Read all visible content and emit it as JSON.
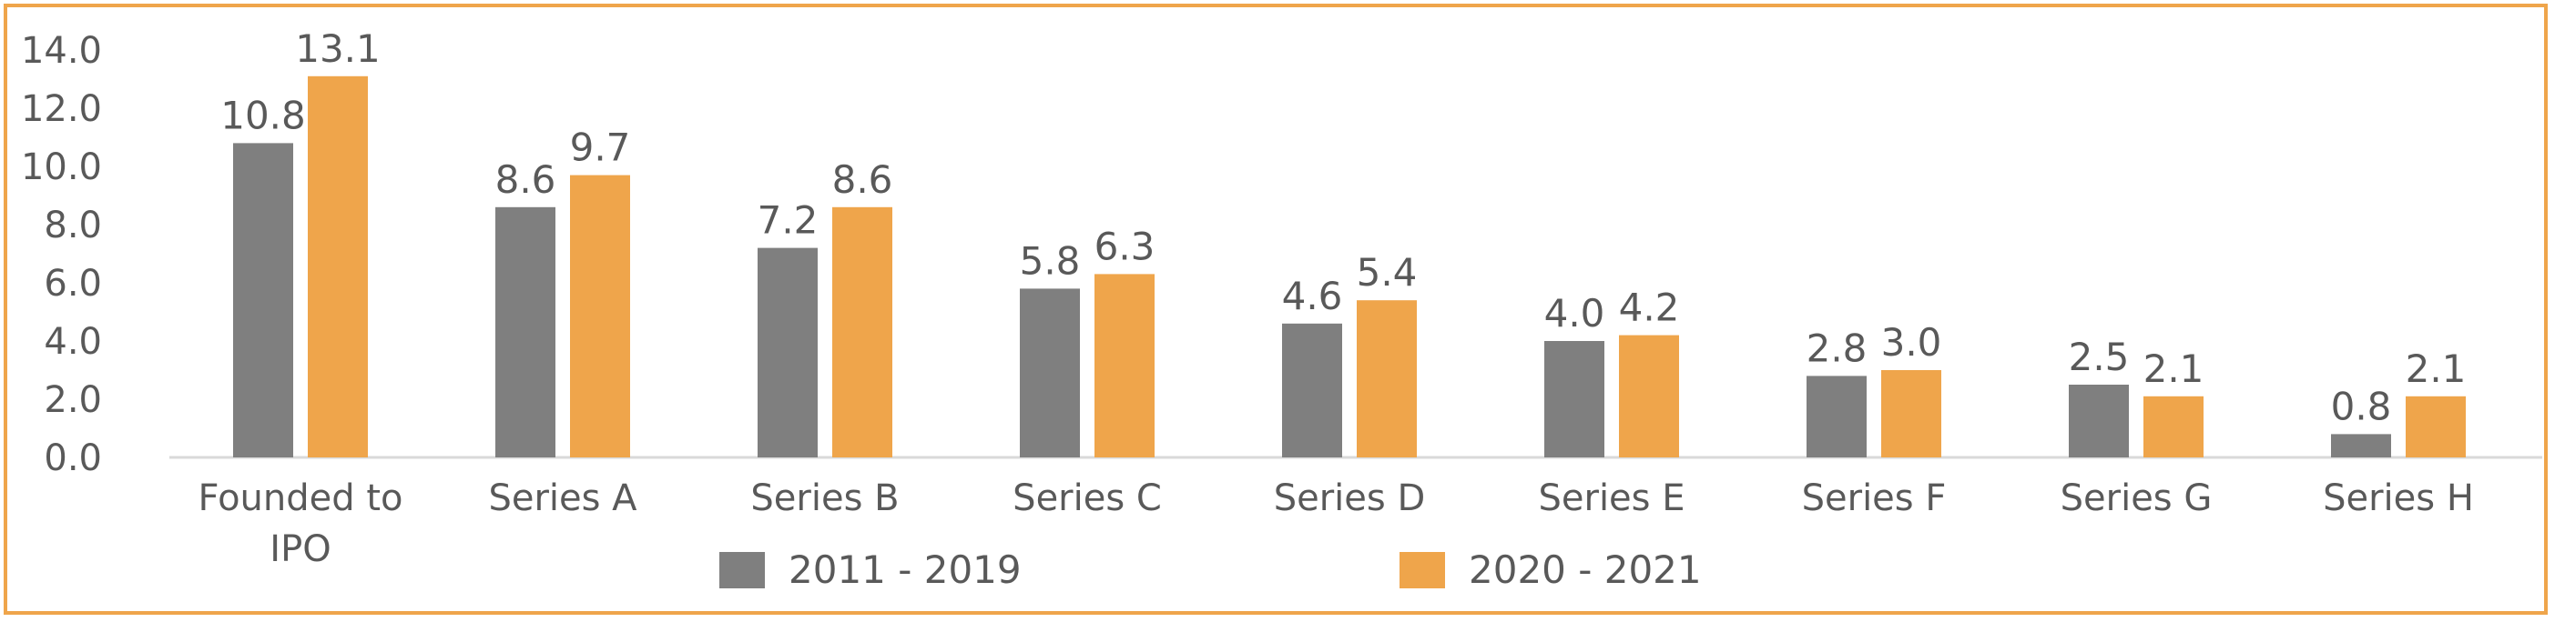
{
  "chart_data": {
    "type": "bar",
    "categories": [
      [
        "Founded to",
        "IPO"
      ],
      [
        "Series A"
      ],
      [
        "Series B"
      ],
      [
        "Series C"
      ],
      [
        "Series D"
      ],
      [
        "Series E"
      ],
      [
        "Series F"
      ],
      [
        "Series G"
      ],
      [
        "Series H"
      ]
    ],
    "series": [
      {
        "name": "2011 - 2019",
        "color": "#7F7F7F",
        "values": [
          10.8,
          8.6,
          7.2,
          5.8,
          4.6,
          4.0,
          2.8,
          2.5,
          0.8
        ]
      },
      {
        "name": "2020 - 2021",
        "color": "#EFA54B",
        "values": [
          13.1,
          9.7,
          8.6,
          6.3,
          5.4,
          4.2,
          3.0,
          2.1,
          2.1
        ]
      }
    ],
    "y_ticks": [
      "0.0",
      "2.0",
      "4.0",
      "6.0",
      "8.0",
      "10.0",
      "12.0",
      "14.0"
    ],
    "ylim": [
      0,
      14
    ],
    "grid": false,
    "legend_position": "bottom",
    "border_color": "#EFA54B"
  }
}
